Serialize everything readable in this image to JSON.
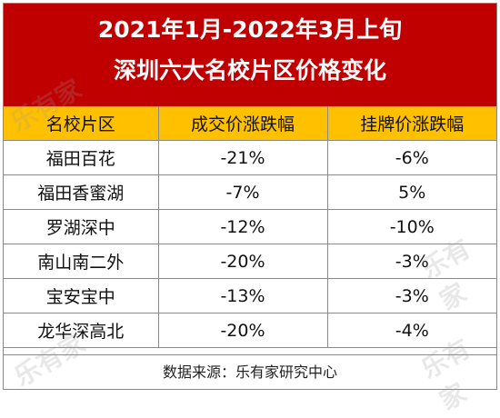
{
  "title": {
    "line1": "2021年1月-2022年3月上旬",
    "line2": "深圳六大名校片区价格变化"
  },
  "table": {
    "headers": [
      "名校片区",
      "成交价涨跌幅",
      "挂牌价涨跌幅"
    ],
    "rows": [
      [
        "福田百花",
        "-21%",
        "-6%"
      ],
      [
        "福田香蜜湖",
        "-7%",
        "5%"
      ],
      [
        "罗湖深中",
        "-12%",
        "-10%"
      ],
      [
        "南山南二外",
        "-20%",
        "-3%"
      ],
      [
        "宝安宝中",
        "-13%",
        "-3%"
      ],
      [
        "龙华深高北",
        "-20%",
        "-4%"
      ]
    ]
  },
  "source": "数据来源：乐有家研究中心",
  "watermark": "乐有家",
  "colors": {
    "title_bg": "#c00000",
    "header_bg": "#ffc000",
    "border": "#8a8a8a"
  }
}
